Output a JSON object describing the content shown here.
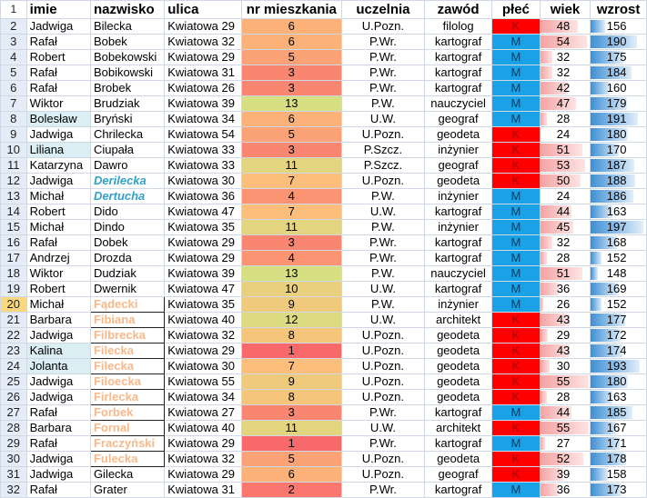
{
  "columns": {
    "rownum": "1",
    "imie": "imie",
    "nazwisko": "nazwisko",
    "ulica": "ulica",
    "nr": "nr mieszkania",
    "uczelnia": "uczelnia",
    "zawod": "zawód",
    "plec": "płeć",
    "wiek": "wiek",
    "wzrost": "wzrost"
  },
  "scales": {
    "wiek": [
      24,
      56
    ],
    "wzrost": [
      140,
      200
    ]
  },
  "colors": {
    "red": "#ff0000",
    "blue": "#1aa2e6",
    "dup_blue": "#31a1c8",
    "dup_orange": "#f7b88a",
    "selected_row": "#f9d77e",
    "highlight": "#daeef3"
  },
  "rows": [
    {
      "n": "2",
      "imie": "Jadwiga",
      "nazwisko": "Bilecka",
      "ulica": "Kwiatowa 29",
      "nr": "6",
      "uczelnia": "U.Pozn.",
      "zawod": "filolog",
      "plec": "K",
      "wiek": "48",
      "wzrost": "156"
    },
    {
      "n": "3",
      "imie": "Rafał",
      "nazwisko": "Bobek",
      "ulica": "Kwiatowa 32",
      "nr": "6",
      "uczelnia": "P.Wr.",
      "zawod": "kartograf",
      "plec": "M",
      "wiek": "54",
      "wzrost": "190"
    },
    {
      "n": "4",
      "imie": "Robert",
      "nazwisko": "Bobekowski",
      "ulica": "Kwiatowa 29",
      "nr": "5",
      "uczelnia": "P.Wr.",
      "zawod": "kartograf",
      "plec": "M",
      "wiek": "32",
      "wzrost": "175"
    },
    {
      "n": "5",
      "imie": "Rafał",
      "nazwisko": "Bobikowski",
      "ulica": "Kwiatowa 31",
      "nr": "3",
      "uczelnia": "P.Wr.",
      "zawod": "kartograf",
      "plec": "M",
      "wiek": "32",
      "wzrost": "184"
    },
    {
      "n": "6",
      "imie": "Rafał",
      "nazwisko": "Brobek",
      "ulica": "Kwiatowa 26",
      "nr": "3",
      "uczelnia": "P.Wr.",
      "zawod": "kartograf",
      "plec": "M",
      "wiek": "42",
      "wzrost": "160"
    },
    {
      "n": "7",
      "imie": "Wiktor",
      "nazwisko": "Brudziak",
      "ulica": "Kwiatowa 39",
      "nr": "13",
      "uczelnia": "P.W.",
      "zawod": "nauczyciel",
      "plec": "M",
      "wiek": "47",
      "wzrost": "179"
    },
    {
      "n": "8",
      "imie": "Bolesław",
      "nazwisko": "Bryński",
      "ulica": "Kwiatowa 34",
      "nr": "6",
      "uczelnia": "U.W.",
      "zawod": "geograf",
      "plec": "M",
      "wiek": "28",
      "wzrost": "191",
      "hl": true
    },
    {
      "n": "9",
      "imie": "Jadwiga",
      "nazwisko": "Chrilecka",
      "ulica": "Kwiatowa 54",
      "nr": "5",
      "uczelnia": "U.Pozn.",
      "zawod": "geodeta",
      "plec": "K",
      "wiek": "24",
      "wzrost": "180"
    },
    {
      "n": "10",
      "imie": "Liliana",
      "nazwisko": "Ciupała",
      "ulica": "Kwiatowa 33",
      "nr": "3",
      "uczelnia": "P.Szcz.",
      "zawod": "inżynier",
      "plec": "K",
      "wiek": "51",
      "wzrost": "170",
      "hl": true
    },
    {
      "n": "11",
      "imie": "Katarzyna",
      "nazwisko": "Dawro",
      "ulica": "Kwiatowa 33",
      "nr": "11",
      "uczelnia": "P.Szcz.",
      "zawod": "geograf",
      "plec": "K",
      "wiek": "53",
      "wzrost": "187"
    },
    {
      "n": "12",
      "imie": "Jadwiga",
      "nazwisko": "Derilecka",
      "ulica": "Kwiatowa 30",
      "nr": "7",
      "uczelnia": "U.Pozn.",
      "zawod": "geodeta",
      "plec": "K",
      "wiek": "50",
      "wzrost": "188",
      "dup": "blue"
    },
    {
      "n": "13",
      "imie": "Michał",
      "nazwisko": "Dertucha",
      "ulica": "Kwiatowa 36",
      "nr": "4",
      "uczelnia": "P.W.",
      "zawod": "inżynier",
      "plec": "M",
      "wiek": "24",
      "wzrost": "186",
      "dup": "blue"
    },
    {
      "n": "14",
      "imie": "Robert",
      "nazwisko": "Dido",
      "ulica": "Kwiatowa 47",
      "nr": "7",
      "uczelnia": "U.W.",
      "zawod": "kartograf",
      "plec": "M",
      "wiek": "44",
      "wzrost": "163"
    },
    {
      "n": "15",
      "imie": "Michał",
      "nazwisko": "Dindo",
      "ulica": "Kwiatowa 35",
      "nr": "11",
      "uczelnia": "P.W.",
      "zawod": "inżynier",
      "plec": "M",
      "wiek": "45",
      "wzrost": "197"
    },
    {
      "n": "16",
      "imie": "Rafał",
      "nazwisko": "Dobek",
      "ulica": "Kwiatowa 29",
      "nr": "3",
      "uczelnia": "P.Wr.",
      "zawod": "kartograf",
      "plec": "M",
      "wiek": "32",
      "wzrost": "168"
    },
    {
      "n": "17",
      "imie": "Andrzej",
      "nazwisko": "Drozda",
      "ulica": "Kwiatowa 29",
      "nr": "4",
      "uczelnia": "P.Wr.",
      "zawod": "kartograf",
      "plec": "M",
      "wiek": "28",
      "wzrost": "152"
    },
    {
      "n": "18",
      "imie": "Wiktor",
      "nazwisko": "Dudziak",
      "ulica": "Kwiatowa 39",
      "nr": "13",
      "uczelnia": "P.W.",
      "zawod": "nauczyciel",
      "plec": "M",
      "wiek": "51",
      "wzrost": "148"
    },
    {
      "n": "19",
      "imie": "Robert",
      "nazwisko": "Dwernik",
      "ulica": "Kwiatowa 47",
      "nr": "10",
      "uczelnia": "U.W.",
      "zawod": "kartograf",
      "plec": "M",
      "wiek": "36",
      "wzrost": "169"
    },
    {
      "n": "20",
      "imie": "Michał",
      "nazwisko": "Fądecki",
      "ulica": "Kwiatowa 35",
      "nr": "9",
      "uczelnia": "P.W.",
      "zawod": "inżynier",
      "plec": "M",
      "wiek": "26",
      "wzrost": "152",
      "dup": "orange",
      "sel": true
    },
    {
      "n": "21",
      "imie": "Barbara",
      "nazwisko": "Fibiana",
      "ulica": "Kwiatowa 40",
      "nr": "12",
      "uczelnia": "U.W.",
      "zawod": "architekt",
      "plec": "K",
      "wiek": "43",
      "wzrost": "177",
      "dup": "orange"
    },
    {
      "n": "22",
      "imie": "Jadwiga",
      "nazwisko": "Filbrecka",
      "ulica": "Kwiatowa 32",
      "nr": "8",
      "uczelnia": "U.Pozn.",
      "zawod": "geodeta",
      "plec": "K",
      "wiek": "29",
      "wzrost": "172",
      "dup": "orange"
    },
    {
      "n": "23",
      "imie": "Kalina",
      "nazwisko": "Filecka",
      "ulica": "Kwiatowa 29",
      "nr": "1",
      "uczelnia": "U.Pozn.",
      "zawod": "geodeta",
      "plec": "K",
      "wiek": "43",
      "wzrost": "174",
      "dup": "orange",
      "hl": true
    },
    {
      "n": "24",
      "imie": "Jolanta",
      "nazwisko": "Filecka",
      "ulica": "Kwiatowa 30",
      "nr": "7",
      "uczelnia": "U.Pozn.",
      "zawod": "geodeta",
      "plec": "K",
      "wiek": "30",
      "wzrost": "193",
      "dup": "orange",
      "hl": true
    },
    {
      "n": "25",
      "imie": "Jadwiga",
      "nazwisko": "Filoecka",
      "ulica": "Kwiatowa 55",
      "nr": "9",
      "uczelnia": "U.Pozn.",
      "zawod": "geodeta",
      "plec": "K",
      "wiek": "55",
      "wzrost": "180",
      "dup": "orange"
    },
    {
      "n": "26",
      "imie": "Jadwiga",
      "nazwisko": "Firlecka",
      "ulica": "Kwiatowa 34",
      "nr": "8",
      "uczelnia": "U.Pozn.",
      "zawod": "geodeta",
      "plec": "K",
      "wiek": "28",
      "wzrost": "163",
      "dup": "orange"
    },
    {
      "n": "27",
      "imie": "Rafał",
      "nazwisko": "Forbek",
      "ulica": "Kwiatowa 27",
      "nr": "3",
      "uczelnia": "P.Wr.",
      "zawod": "kartograf",
      "plec": "M",
      "wiek": "44",
      "wzrost": "185",
      "dup": "orange"
    },
    {
      "n": "28",
      "imie": "Barbara",
      "nazwisko": "Fornal",
      "ulica": "Kwiatowa 40",
      "nr": "11",
      "uczelnia": "U.W.",
      "zawod": "architekt",
      "plec": "K",
      "wiek": "55",
      "wzrost": "167",
      "dup": "orange"
    },
    {
      "n": "29",
      "imie": "Rafał",
      "nazwisko": "Fraczyński",
      "ulica": "Kwiatowa 29",
      "nr": "1",
      "uczelnia": "P.Wr.",
      "zawod": "kartograf",
      "plec": "M",
      "wiek": "27",
      "wzrost": "171",
      "dup": "orange"
    },
    {
      "n": "30",
      "imie": "Jadwiga",
      "nazwisko": "Fulecka",
      "ulica": "Kwiatowa 32",
      "nr": "5",
      "uczelnia": "U.Pozn.",
      "zawod": "geodeta",
      "plec": "K",
      "wiek": "52",
      "wzrost": "178",
      "dup": "orange"
    },
    {
      "n": "31",
      "imie": "Jadwiga",
      "nazwisko": "Gilecka",
      "ulica": "Kwiatowa 29",
      "nr": "6",
      "uczelnia": "U.Pozn.",
      "zawod": "geograf",
      "plec": "K",
      "wiek": "39",
      "wzrost": "158"
    },
    {
      "n": "32",
      "imie": "Rafał",
      "nazwisko": "Grater",
      "ulica": "Kwiatowa 31",
      "nr": "2",
      "uczelnia": "P.Wr.",
      "zawod": "kartograf",
      "plec": "M",
      "wiek": "36",
      "wzrost": "173"
    }
  ]
}
